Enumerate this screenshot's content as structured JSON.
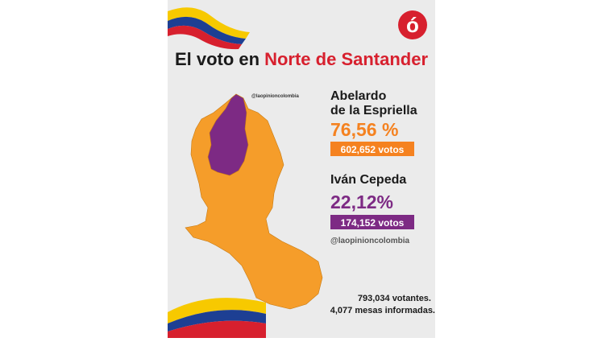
{
  "header": {
    "logo": "ó",
    "title": "El voto en",
    "title_highlight": "Norte de Santander"
  },
  "map": {
    "handle": "@laopinioncolombia"
  },
  "candidates": [
    {
      "name_lines": [
        "Abelardo",
        "de la Espriella"
      ],
      "percent": "76,56 %",
      "votes": "602,652 votos"
    },
    {
      "name_lines": [
        "Iván Cepeda"
      ],
      "percent": "22,12%",
      "votes": "174,152 votos"
    }
  ],
  "handle": "@laopinioncolombia",
  "footer": [
    "793,034 votantes.",
    "4,077 mesas informadas."
  ]
}
